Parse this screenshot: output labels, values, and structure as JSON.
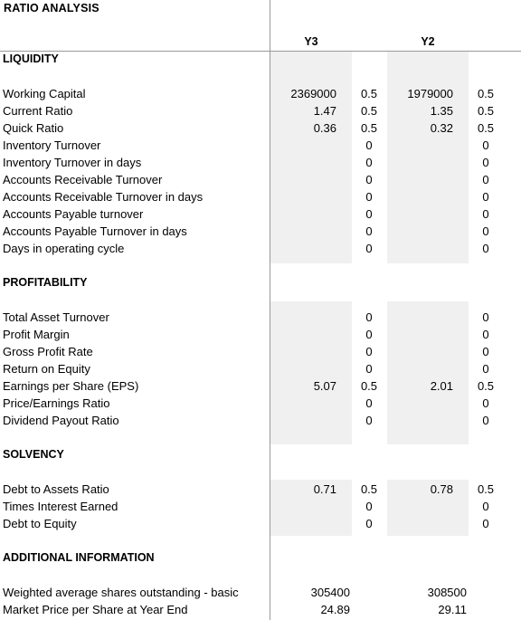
{
  "title": "RATIO ANALYSIS",
  "columns": {
    "y3": "Y3",
    "y2": "Y2"
  },
  "sections": {
    "liquidity": "LIQUIDITY",
    "profitability": "PROFITABILITY",
    "solvency": "SOLVENCY",
    "additional": "ADDITIONAL INFORMATION"
  },
  "rows": [
    {
      "label": "Working Capital",
      "y3": "2369000",
      "w3": "0.5",
      "y2": "1979000",
      "w2": "0.5"
    },
    {
      "label": "Current Ratio",
      "y3": "1.47",
      "w3": "0.5",
      "y2": "1.35",
      "w2": "0.5"
    },
    {
      "label": "Quick Ratio",
      "y3": "0.36",
      "w3": "0.5",
      "y2": "0.32",
      "w2": "0.5"
    },
    {
      "label": "Inventory Turnover",
      "y3": "",
      "w3": "0",
      "y2": "",
      "w2": "0"
    },
    {
      "label": "Inventory Turnover in days",
      "y3": "",
      "w3": "0",
      "y2": "",
      "w2": "0"
    },
    {
      "label": "Accounts Receivable Turnover",
      "y3": "",
      "w3": "0",
      "y2": "",
      "w2": "0"
    },
    {
      "label": "Accounts Receivable Turnover in days",
      "y3": "",
      "w3": "0",
      "y2": "",
      "w2": "0"
    },
    {
      "label": "Accounts Payable turnover",
      "y3": "",
      "w3": "0",
      "y2": "",
      "w2": "0"
    },
    {
      "label": "Accounts Payable Turnover in days",
      "y3": "",
      "w3": "0",
      "y2": "",
      "w2": "0"
    },
    {
      "label": "Days in operating cycle",
      "y3": "",
      "w3": "0",
      "y2": "",
      "w2": "0"
    },
    {
      "label": "Total Asset Turnover",
      "y3": "",
      "w3": "0",
      "y2": "",
      "w2": "0"
    },
    {
      "label": "Profit Margin",
      "y3": "",
      "w3": "0",
      "y2": "",
      "w2": "0"
    },
    {
      "label": "Gross Profit Rate",
      "y3": "",
      "w3": "0",
      "y2": "",
      "w2": "0"
    },
    {
      "label": "Return on Equity",
      "y3": "",
      "w3": "0",
      "y2": "",
      "w2": "0"
    },
    {
      "label": "Earnings per Share (EPS)",
      "y3": "5.07",
      "w3": "0.5",
      "y2": "2.01",
      "w2": "0.5"
    },
    {
      "label": "Price/Earnings Ratio",
      "y3": "",
      "w3": "0",
      "y2": "",
      "w2": "0"
    },
    {
      "label": "Dividend Payout Ratio",
      "y3": "",
      "w3": "0",
      "y2": "",
      "w2": "0"
    },
    {
      "label": "Debt to Assets Ratio",
      "y3": "0.71",
      "w3": "0.5",
      "y2": "0.78",
      "w2": "0.5"
    },
    {
      "label": "Times Interest Earned",
      "y3": "",
      "w3": "0",
      "y2": "",
      "w2": "0"
    },
    {
      "label": "Debt to Equity",
      "y3": "",
      "w3": "0",
      "y2": "",
      "w2": "0"
    }
  ],
  "additional": [
    {
      "label": "Weighted average shares outstanding - basic",
      "y3": "305400",
      "y2": "308500"
    },
    {
      "label": "Market Price per Share at Year End",
      "y3": "24.89",
      "y2": "29.11"
    }
  ]
}
